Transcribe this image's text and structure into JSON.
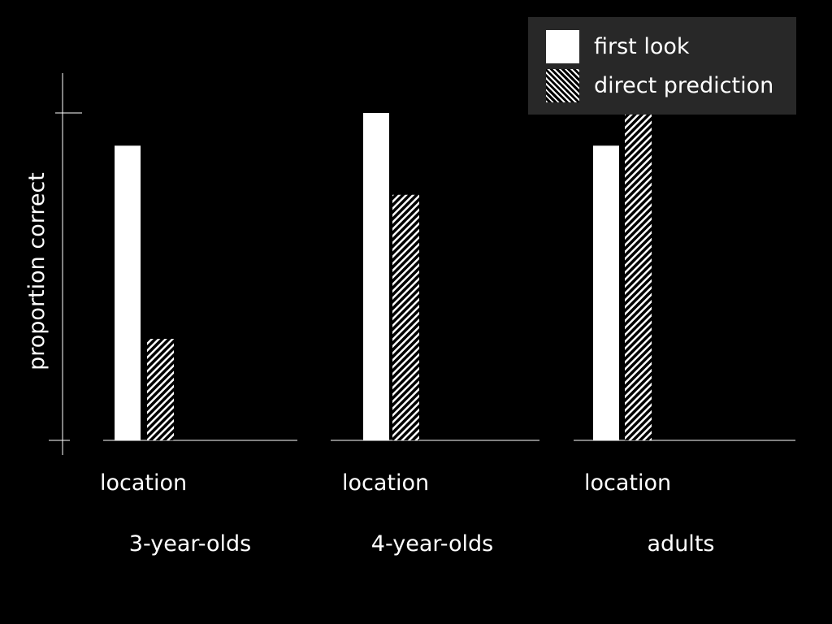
{
  "chart_data": {
    "type": "bar",
    "ylabel": "proportion correct",
    "ylim": [
      0,
      1
    ],
    "groups": [
      {
        "category": "location",
        "group_label": "3-year-olds"
      },
      {
        "category": "location",
        "group_label": "4-year-olds"
      },
      {
        "category": "location",
        "group_label": "adults"
      }
    ],
    "series": [
      {
        "name": "first look",
        "pattern": "solid",
        "values": [
          0.9,
          1.0,
          0.9
        ]
      },
      {
        "name": "direct prediction",
        "pattern": "hatched",
        "values": [
          0.31,
          0.75,
          1.0
        ]
      }
    ],
    "legend_position": "top-right",
    "colors": {
      "background": "#000000",
      "bars": "#ffffff",
      "legend_bg": "#282828"
    }
  }
}
